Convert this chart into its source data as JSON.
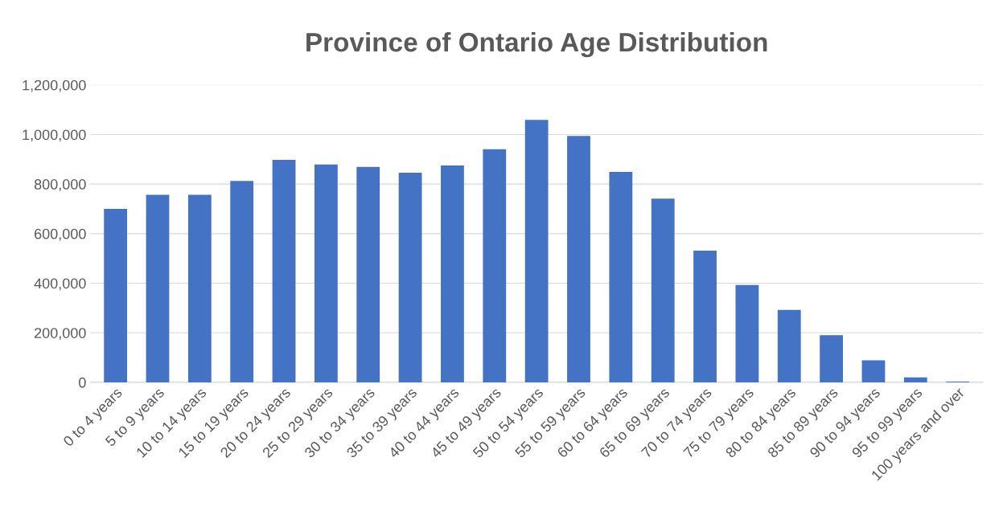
{
  "chart_data": {
    "type": "bar",
    "title": "Province of Ontario Age Distribution",
    "categories": [
      "0 to 4 years",
      "5 to 9 years",
      "10 to 14 years",
      "15 to 19 years",
      "20 to 24 years",
      "25 to 29 years",
      "30 to 34 years",
      "35 to 39 years",
      "40 to 44 years",
      "45 to 49 years",
      "50 to 54 years",
      "55 to 59 years",
      "60 to 64 years",
      "65 to 69 years",
      "70 to 74 years",
      "75 to 79 years",
      "80 to 84 years",
      "85 to 89 years",
      "90 to 94 years",
      "95 to 99 years",
      "100 years and over"
    ],
    "values": [
      700000,
      757000,
      757000,
      813000,
      898000,
      879000,
      869000,
      846000,
      875000,
      941000,
      1059000,
      994000,
      849000,
      741000,
      531000,
      393000,
      292000,
      190000,
      89000,
      20000,
      3000
    ],
    "color": "#4472c4",
    "ylim": [
      0,
      1200000
    ],
    "yticks": [
      {
        "value": 0,
        "label": "0"
      },
      {
        "value": 200000,
        "label": "200,000"
      },
      {
        "value": 400000,
        "label": "400,000"
      },
      {
        "value": 600000,
        "label": "600,000"
      },
      {
        "value": 800000,
        "label": "800,000"
      },
      {
        "value": 1000000,
        "label": "1,000,000"
      },
      {
        "value": 1200000,
        "label": "1,200,000"
      }
    ],
    "grid": "y",
    "legend": false
  }
}
